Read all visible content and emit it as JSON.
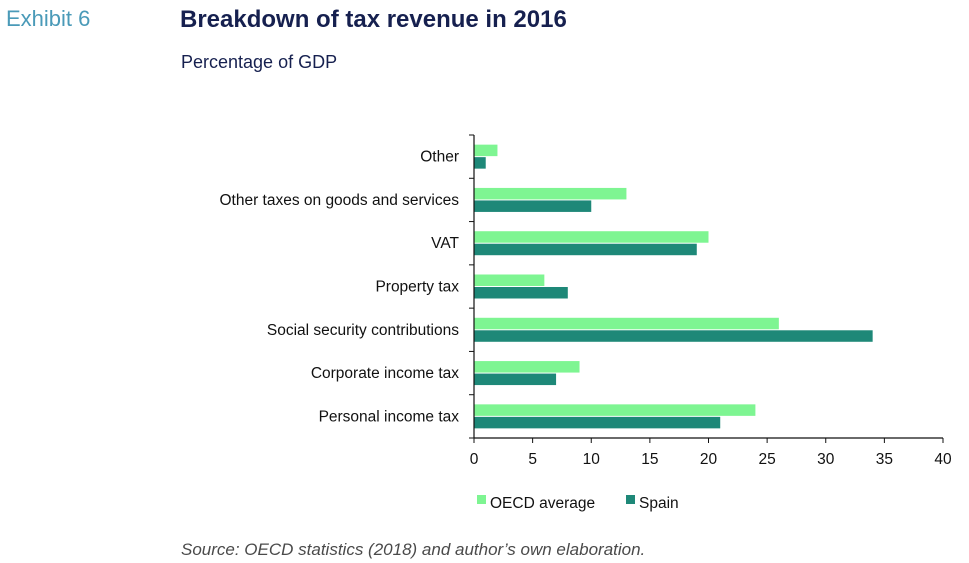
{
  "exhibit_label": "Exhibit 6",
  "title": "Breakdown of tax revenue in 2016",
  "subtitle": "Percentage of GDP",
  "source": "Source: OECD statistics (2018) and author’s own elaboration.",
  "colors": {
    "oecd": "#7ef592",
    "spain": "#1e8878",
    "axis": "#111111"
  },
  "chart_data": {
    "type": "bar",
    "orientation": "horizontal",
    "title": "Breakdown of tax revenue in 2016",
    "subtitle": "Percentage of GDP",
    "xlabel": "",
    "ylabel": "",
    "xlim": [
      0,
      40
    ],
    "xticks": [
      0,
      5,
      10,
      15,
      20,
      25,
      30,
      35,
      40
    ],
    "grid": false,
    "legend": "bottom",
    "categories": [
      "Other",
      "Other taxes on goods and services",
      "VAT",
      "Property tax",
      "Social security contributions",
      "Corporate income tax",
      "Personal income tax"
    ],
    "series": [
      {
        "name": "OECD average",
        "values": [
          2,
          13,
          20,
          6,
          26,
          9,
          24
        ]
      },
      {
        "name": "Spain",
        "values": [
          1,
          10,
          19,
          8,
          34,
          7,
          21
        ]
      }
    ]
  }
}
